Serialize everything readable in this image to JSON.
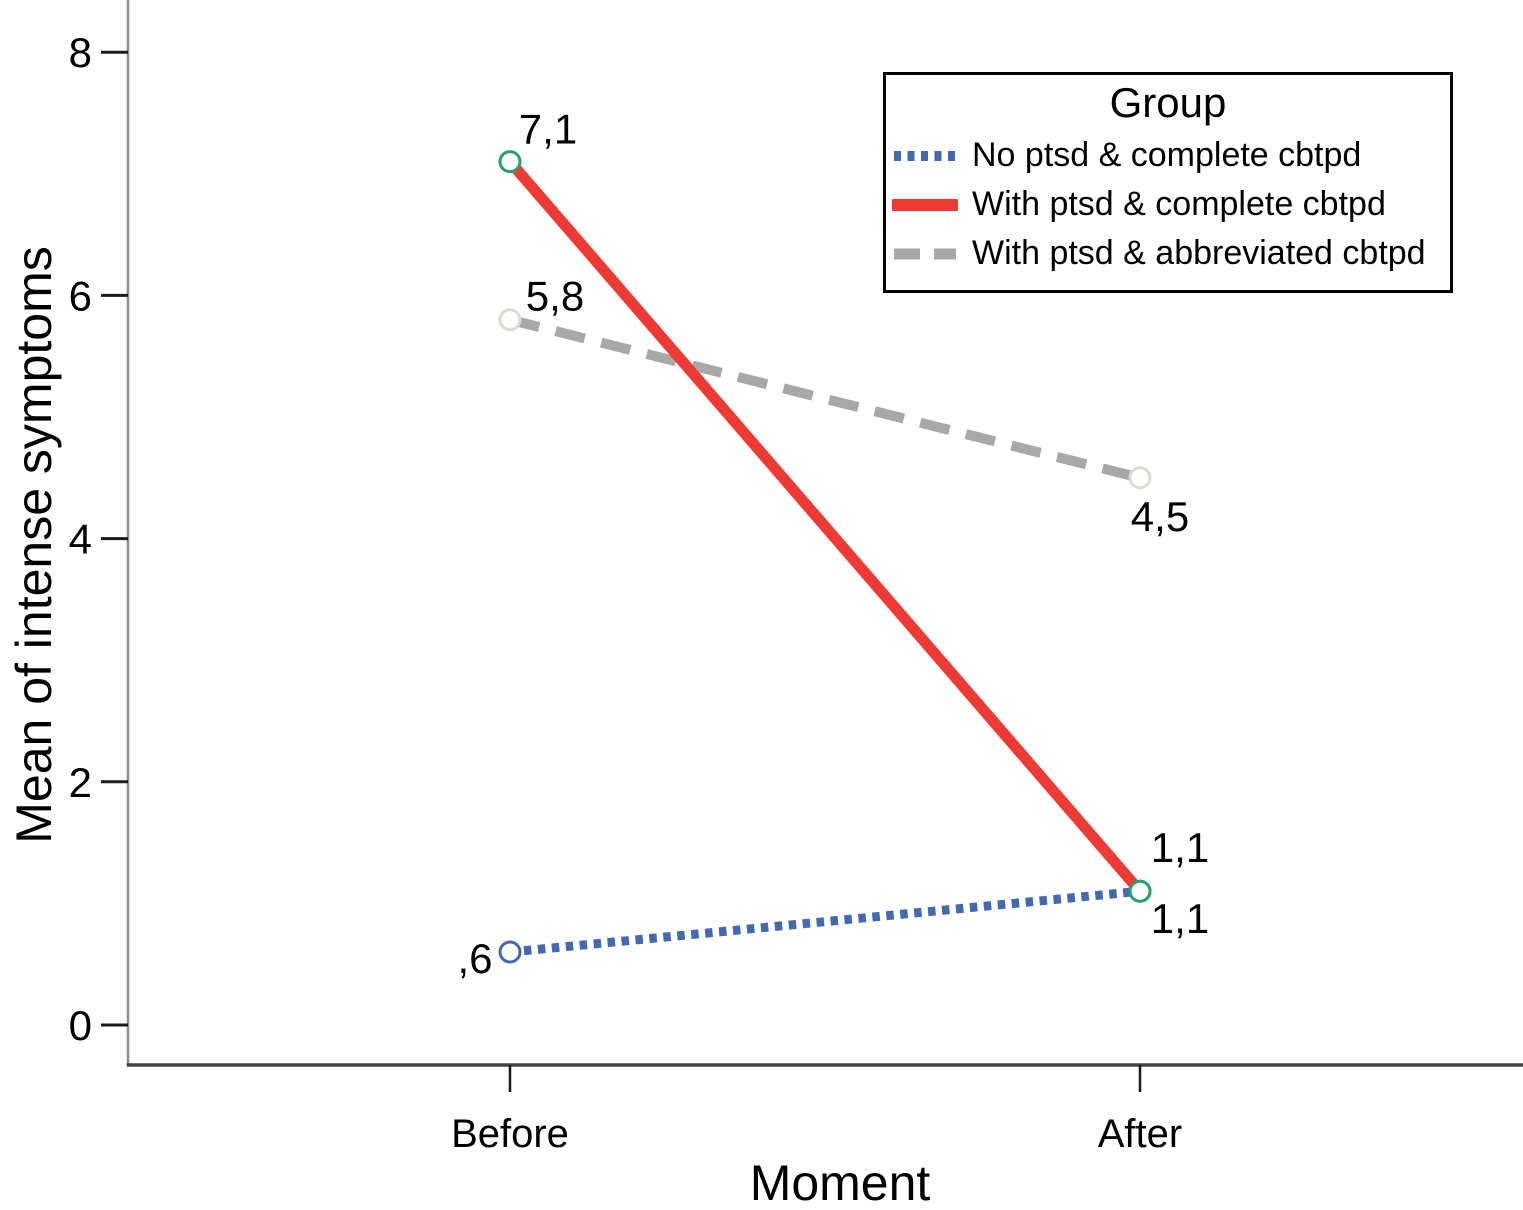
{
  "chart_data": {
    "type": "line",
    "title": "",
    "legend_title": "Group",
    "legend_position": "top-right",
    "xlabel": "Moment",
    "ylabel": "Mean of intense symptoms",
    "categories": [
      "Before",
      "After"
    ],
    "yticks": [
      8,
      6,
      4,
      2,
      0
    ],
    "ylim": [
      -0.35,
      8.4
    ],
    "grid": false,
    "axis_color": "#1a1a1a",
    "series": [
      {
        "name": "No ptsd & complete cbtpd",
        "values": [
          0.6,
          1.1
        ],
        "point_labels": [
          ",6",
          "1,1"
        ],
        "color": "#4569ae",
        "line_style": "dotted",
        "marker_color": "#4569ae"
      },
      {
        "name": "With ptsd & complete cbtpd",
        "values": [
          7.1,
          1.1
        ],
        "point_labels": [
          "7,1",
          "1,1"
        ],
        "color": "#ee3a35",
        "line_style": "solid",
        "marker_color": "#27a06e"
      },
      {
        "name": "With ptsd & abbreviated cbtpd",
        "values": [
          5.8,
          4.5
        ],
        "point_labels": [
          "5,8",
          "4,5"
        ],
        "color": "#a8a8a8",
        "line_style": "dashed",
        "marker_color": "#dcdbce"
      }
    ]
  }
}
